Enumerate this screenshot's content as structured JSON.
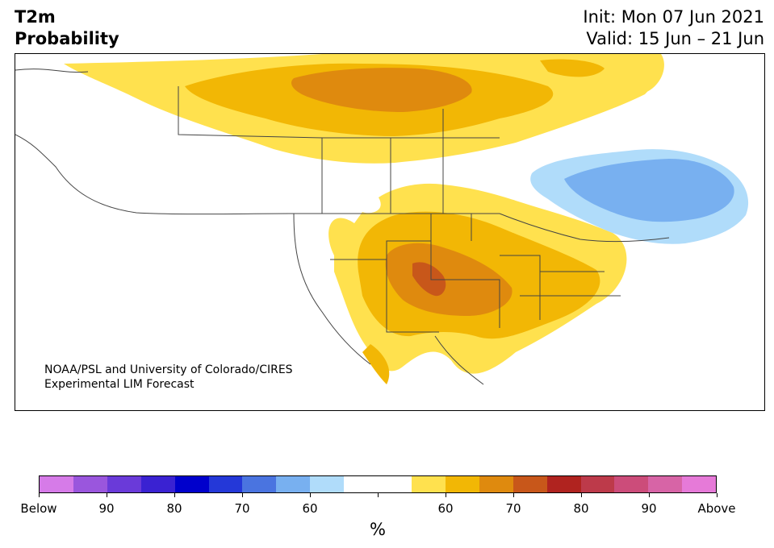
{
  "title": {
    "left_line1": "T2m",
    "left_line2": "Probability",
    "init": "Init: Mon 07 Jun 2021",
    "valid": "Valid: 15 Jun – 21 Jun"
  },
  "credit": {
    "line1": "NOAA/PSL and University of Colorado/CIRES",
    "line2": "Experimental LIM Forecast"
  },
  "colorbar": {
    "colors": [
      "#d67be8",
      "#9a56dd",
      "#6a3ad9",
      "#3a22d2",
      "#0000cc",
      "#2438d8",
      "#4a74e0",
      "#78b0f0",
      "#b0dcfa",
      "#ffffff",
      "#ffffff",
      "#ffe14e",
      "#f2b705",
      "#df8a0e",
      "#c8571a",
      "#b0231f",
      "#bd3a4a",
      "#cc4c7a",
      "#d764a6",
      "#e67ad8"
    ],
    "ticks": [
      "Below",
      "90",
      "80",
      "70",
      "60",
      "",
      "60",
      "70",
      "80",
      "90",
      "Above"
    ],
    "unit": "%"
  },
  "map_regions": {
    "warm_colors": [
      "#ffe14e",
      "#f2b705",
      "#df8a0e",
      "#c8571a"
    ],
    "cold_colors": [
      "#b0dcfa",
      "#78b0f0"
    ]
  }
}
